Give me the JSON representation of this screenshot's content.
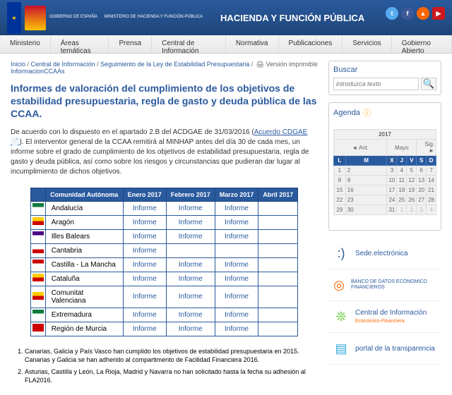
{
  "header": {
    "gov1": "GOBIERNO\nDE ESPAÑA",
    "gov2": "MINISTERIO\nDE HACIENDA\nY FUNCIÓN PÚBLICA",
    "title": "HACIENDA Y FUNCIÓN PÚBLICA",
    "social_colors": {
      "tw": "#55acee",
      "fb": "#3b5998",
      "rss": "#ff6600",
      "yt": "#cc181e"
    }
  },
  "nav": [
    "Ministerio",
    "Áreas temáticas",
    "Prensa",
    "Central de Información",
    "Normativa",
    "Publicaciones",
    "Servicios",
    "Gobierno Abierto"
  ],
  "breadcrumb": [
    "Inicio",
    "Central de Información",
    "Seguimiento de la Ley de Estabilidad Presupuestaria",
    "InformacionCCAAs"
  ],
  "print": "Versión imprimible",
  "title": "Informes de valoración del cumplimiento de los objetivos de estabilidad presupuestaria, regla de gasto y deuda pública de las CCAA.",
  "intro_a": "De acuerdo con lo dispuesto en el apartado 2.B del ACDGAE de 31/03/2016 (",
  "intro_link": "Acuerdo CDGAE",
  "intro_b": "). El interventor general de la CCAA remitirá al MINHAP antes del día 30 de cada mes, un informe sobre el grado de cumplimiento de los objetivos de estabilidad presupuestaria, regla de gasto y deuda pública, así como sobre los riesgos y circunstancias que pudieran dar lugar al incumplimiento de dichos objetivos.",
  "table": {
    "headers": [
      "",
      "Comunidad Autónoma",
      "Enero 2017",
      "Febrero 2017",
      "Marzo 2017",
      "Abril 2017"
    ],
    "link_label": "Informe",
    "rows": [
      {
        "flag": "#0d7a3b,#ffffff",
        "name": "Andalucía",
        "links": [
          1,
          1,
          1,
          0
        ]
      },
      {
        "flag": "#ffcc00,#cc0000",
        "name": "Aragón",
        "links": [
          1,
          1,
          1,
          0
        ]
      },
      {
        "flag": "#4b0082,#ffffff",
        "name": "Illes Balears",
        "links": [
          1,
          1,
          1,
          0
        ]
      },
      {
        "flag": "#ffffff,#cc0000",
        "name": "Cantabria",
        "links": [
          1,
          0,
          0,
          0
        ]
      },
      {
        "flag": "#cc0000,#ffffff",
        "name": "Castilla - La Mancha",
        "links": [
          1,
          1,
          1,
          0
        ]
      },
      {
        "flag": "#ffcc00,#cc0000",
        "name": "Cataluña",
        "links": [
          1,
          1,
          1,
          0
        ]
      },
      {
        "flag": "#ffcc00,#cc0000",
        "name": "Comunitat Valenciana",
        "links": [
          1,
          1,
          1,
          0
        ]
      },
      {
        "flag": "#0d7a3b,#ffffff",
        "name": "Extremadura",
        "links": [
          1,
          1,
          1,
          0
        ]
      },
      {
        "flag": "#cc0000,#cc0000",
        "name": "Región de Murcia",
        "links": [
          1,
          1,
          1,
          0
        ]
      }
    ]
  },
  "notes": [
    "Canarias, Galicia y País Vasco han cumplido los objetivos de estabilidad presupuestaria en 2015.  Canarias y Galicia se han adherido al compartimento de Facilidad Financiera 2016.",
    "Asturias, Castilla y León, La Rioja, Madrid y Navarra no han solicitado hasta la fecha su adhesión al FLA2016."
  ],
  "sidebar": {
    "search_title": "Buscar",
    "search_placeholder": "introduzca texto",
    "agenda_title": "Agenda",
    "cal": {
      "year": "2017",
      "month": "Mayo",
      "prev": "◄ Ant.",
      "next": "Sig. ►",
      "days": [
        "L",
        "M",
        "X",
        "J",
        "V",
        "S",
        "D"
      ],
      "weeks": [
        [
          "1",
          "2",
          "3",
          "4",
          "5",
          "6",
          "7"
        ],
        [
          "8",
          "9",
          "10",
          "11",
          "12",
          "13",
          "14"
        ],
        [
          "15",
          "16",
          "17",
          "18",
          "19",
          "20",
          "21"
        ],
        [
          "22",
          "23",
          "24",
          "25",
          "26",
          "27",
          "28"
        ],
        [
          "29",
          "30",
          "31",
          "1",
          "2",
          "3",
          "4"
        ]
      ]
    },
    "links": [
      {
        "icon": ":)",
        "color": "#2a5a9e",
        "label": "Sede.electrónica"
      },
      {
        "icon": "◎",
        "color": "#ff6600",
        "label": "BANCO DE DATOS ECONOMICO FINANCIEROS",
        "small": true
      },
      {
        "icon": "❊",
        "color": "#66cc33",
        "label": "Central de Información",
        "sub": "Económico-Financiera"
      },
      {
        "icon": "▤",
        "color": "#33aadd",
        "label": "portal de la transparencia"
      }
    ]
  }
}
